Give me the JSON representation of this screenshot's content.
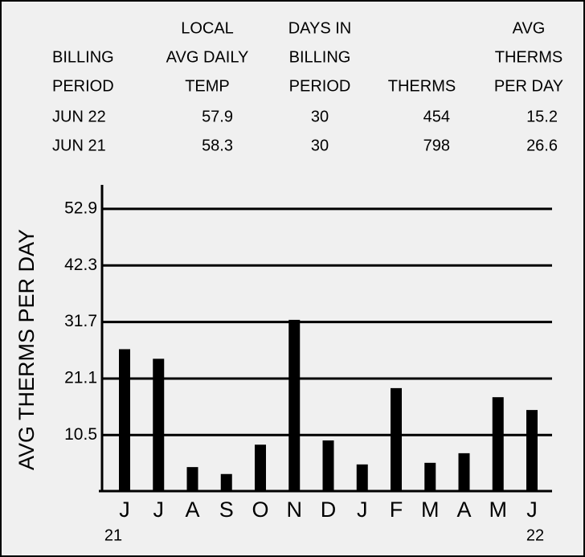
{
  "table": {
    "headers": [
      [
        "BILLING",
        "PERIOD"
      ],
      [
        "LOCAL",
        "AVG DAILY",
        "TEMP"
      ],
      [
        "DAYS IN",
        "BILLING",
        "PERIOD"
      ],
      [
        "THERMS"
      ],
      [
        "AVG",
        "THERMS",
        "PER DAY"
      ]
    ],
    "rows": [
      [
        "JUN  22",
        "57.9",
        "30",
        "454",
        "15.2"
      ],
      [
        "JUN  21",
        "58.3",
        "30",
        "798",
        "26.6"
      ]
    ]
  },
  "chart_data": {
    "type": "bar",
    "y_label": "AVG THERMS PER DAY",
    "categories": [
      "J",
      "J",
      "A",
      "S",
      "O",
      "N",
      "D",
      "J",
      "F",
      "M",
      "A",
      "M",
      "J"
    ],
    "category_sublabels": [
      "21",
      null,
      null,
      null,
      null,
      null,
      null,
      null,
      null,
      null,
      null,
      null,
      "22"
    ],
    "values": [
      26.6,
      24.8,
      4.5,
      3.2,
      8.7,
      32.1,
      9.5,
      5.0,
      19.3,
      5.3,
      7.1,
      17.6,
      15.2
    ],
    "color": "#000000",
    "ylim": [
      0,
      57.4
    ],
    "yticks": [
      10.5,
      21.1,
      31.7,
      42.3,
      52.9
    ],
    "grid": true
  }
}
